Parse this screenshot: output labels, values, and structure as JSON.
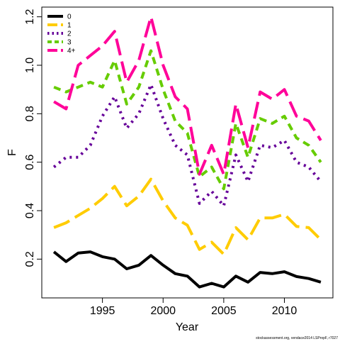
{
  "chart_data": {
    "type": "line",
    "xlabel": "Year",
    "ylabel": "F",
    "xlim": [
      1990,
      2014
    ],
    "ylim": [
      0.04,
      1.24
    ],
    "x_ticks": [
      1995,
      2000,
      2005,
      2010
    ],
    "y_ticks": [
      0.2,
      0.4,
      0.6,
      0.8,
      1.0,
      1.2
    ],
    "x_tick_labels": [
      "1995",
      "2000",
      "2005",
      "2010"
    ],
    "y_tick_labels": [
      "0.2",
      "0.4",
      "0.6",
      "0.8",
      "1.0",
      "1.2"
    ],
    "grid": false,
    "legend_position": "top-left",
    "footnote": "stockassessment.org, vendace2014 LSPropF, r7027",
    "x": [
      1991,
      1992,
      1993,
      1994,
      1995,
      1996,
      1997,
      1998,
      1999,
      2000,
      2001,
      2002,
      2003,
      2004,
      2005,
      2006,
      2007,
      2008,
      2009,
      2010,
      2011,
      2012,
      2013
    ],
    "series": [
      {
        "name": "0",
        "color": "#000000",
        "dash": "solid",
        "values": [
          0.23,
          0.19,
          0.225,
          0.23,
          0.21,
          0.2,
          0.16,
          0.175,
          0.215,
          0.175,
          0.14,
          0.13,
          0.085,
          0.1,
          0.085,
          0.13,
          0.105,
          0.145,
          0.14,
          0.148,
          0.128,
          0.12,
          0.105
        ]
      },
      {
        "name": "1",
        "color": "#FFCC00",
        "dash": "long",
        "values": [
          0.33,
          0.35,
          0.38,
          0.41,
          0.45,
          0.5,
          0.42,
          0.46,
          0.53,
          0.44,
          0.37,
          0.34,
          0.24,
          0.27,
          0.22,
          0.33,
          0.28,
          0.37,
          0.37,
          0.385,
          0.335,
          0.33,
          0.28
        ]
      },
      {
        "name": "2",
        "color": "#660099",
        "dash": "dot",
        "values": [
          0.58,
          0.62,
          0.62,
          0.67,
          0.79,
          0.87,
          0.74,
          0.8,
          0.92,
          0.78,
          0.67,
          0.63,
          0.43,
          0.48,
          0.42,
          0.63,
          0.52,
          0.67,
          0.66,
          0.69,
          0.6,
          0.58,
          0.52
        ]
      },
      {
        "name": "3",
        "color": "#66CC00",
        "dash": "dash",
        "values": [
          0.91,
          0.89,
          0.91,
          0.93,
          0.91,
          1.02,
          0.84,
          0.91,
          1.06,
          0.9,
          0.77,
          0.72,
          0.54,
          0.58,
          0.49,
          0.76,
          0.62,
          0.78,
          0.76,
          0.79,
          0.7,
          0.67,
          0.6
        ]
      },
      {
        "name": "4+",
        "color": "#FF0099",
        "dash": "long",
        "values": [
          0.85,
          0.82,
          1.0,
          1.04,
          1.08,
          1.14,
          0.93,
          1.02,
          1.2,
          1.0,
          0.87,
          0.82,
          0.55,
          0.67,
          0.55,
          0.84,
          0.66,
          0.89,
          0.86,
          0.9,
          0.79,
          0.77,
          0.69
        ]
      }
    ]
  }
}
